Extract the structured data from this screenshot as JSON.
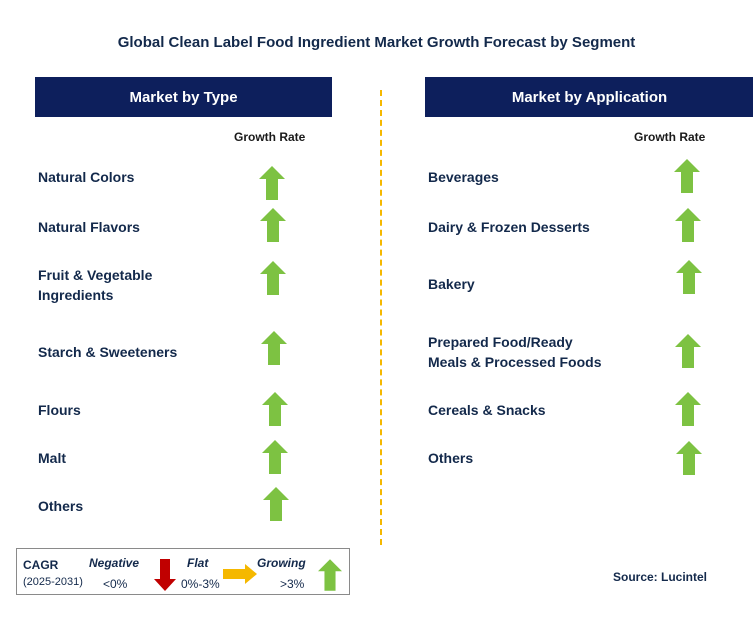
{
  "title": "Global Clean Label Food Ingredient Market Growth Forecast by Segment",
  "left_panel": {
    "header": "Market by Type",
    "growth_label": "Growth Rate",
    "items": [
      {
        "label_lines": [
          "Natural Colors"
        ],
        "trend": "growing"
      },
      {
        "label_lines": [
          "Natural Flavors"
        ],
        "trend": "growing"
      },
      {
        "label_lines": [
          "Fruit & Vegetable",
          "Ingredients"
        ],
        "trend": "growing"
      },
      {
        "label_lines": [
          "Starch & Sweeteners"
        ],
        "trend": "growing"
      },
      {
        "label_lines": [
          "Flours"
        ],
        "trend": "growing"
      },
      {
        "label_lines": [
          "Malt"
        ],
        "trend": "growing"
      },
      {
        "label_lines": [
          "Others"
        ],
        "trend": "growing"
      }
    ]
  },
  "right_panel": {
    "header": "Market by Application",
    "growth_label": "Growth Rate",
    "items": [
      {
        "label_lines": [
          "Beverages"
        ],
        "trend": "growing"
      },
      {
        "label_lines": [
          "Dairy & Frozen Desserts"
        ],
        "trend": "growing"
      },
      {
        "label_lines": [
          "Bakery"
        ],
        "trend": "growing"
      },
      {
        "label_lines": [
          "Prepared Food/Ready",
          "Meals & Processed Foods"
        ],
        "trend": "growing"
      },
      {
        "label_lines": [
          "Cereals & Snacks"
        ],
        "trend": "growing"
      },
      {
        "label_lines": [
          "Others"
        ],
        "trend": "growing"
      }
    ]
  },
  "legend": {
    "cagr": "CAGR",
    "period": "(2025-2031)",
    "negative_label": "Negative",
    "negative_range": "<0%",
    "flat_label": "Flat",
    "flat_range": "0%-3%",
    "growing_label": "Growing",
    "growing_range": ">3%"
  },
  "source": "Source: Lucintel",
  "colors": {
    "header_bg": "#0d1f5c",
    "text": "#13294b",
    "divider": "#f5b800",
    "arrow_up": "#7dc242",
    "arrow_down": "#c00000",
    "arrow_flat": "#f5b800"
  }
}
